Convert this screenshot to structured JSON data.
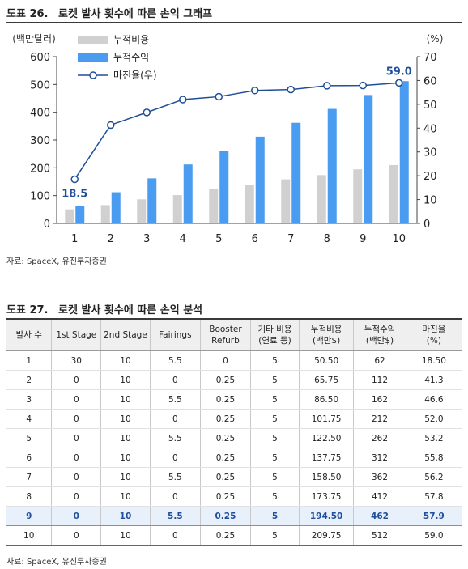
{
  "figure1": {
    "label": "도표 26.",
    "title": "로켓 발사 횟수에 따른 손익 그래프",
    "left_axis_unit": "(백만달러)",
    "right_axis_unit": "(%)",
    "source": "자료: SpaceX, 유진투자증권"
  },
  "chart_data": {
    "type": "bar",
    "categories": [
      "1",
      "2",
      "3",
      "4",
      "5",
      "6",
      "7",
      "8",
      "9",
      "10"
    ],
    "series": [
      {
        "name": "누적비용",
        "kind": "bar",
        "axis": "left",
        "color": "#d0d0d0",
        "values": [
          50.5,
          65.75,
          86.5,
          101.75,
          122.5,
          137.75,
          158.5,
          173.75,
          194.5,
          209.75
        ]
      },
      {
        "name": "누적수익",
        "kind": "bar",
        "axis": "left",
        "color": "#4a9cf0",
        "values": [
          62,
          112,
          162,
          212,
          262,
          312,
          362,
          412,
          462,
          512
        ]
      },
      {
        "name": "마진율(우)",
        "kind": "line",
        "axis": "right",
        "color": "#1f4e9a",
        "values": [
          18.5,
          41.3,
          46.6,
          52.0,
          53.2,
          55.8,
          56.2,
          57.8,
          57.9,
          59.0
        ]
      }
    ],
    "ylim": [
      0,
      600
    ],
    "y2lim": [
      0,
      70
    ],
    "yticks": [
      "0",
      "100",
      "200",
      "300",
      "400",
      "500",
      "600"
    ],
    "y2ticks": [
      "0",
      "10",
      "20",
      "30",
      "40",
      "50",
      "60",
      "70"
    ],
    "annotations": [
      {
        "index": 0,
        "text": "18.5"
      },
      {
        "index": 9,
        "text": "59.0"
      }
    ],
    "legend": "top-left",
    "grid": false
  },
  "figure2": {
    "label": "도표 27.",
    "title": "로켓 발사 횟수에 따른 손익 분석",
    "source": "자료: SpaceX, 유진투자증권",
    "headers": [
      [
        "발사 수"
      ],
      [
        "1st Stage"
      ],
      [
        "2nd Stage"
      ],
      [
        "Fairings"
      ],
      [
        "Booster",
        "Refurb"
      ],
      [
        "기타 비용",
        "(연료 등)"
      ],
      [
        "누적비용",
        "(백만$)"
      ],
      [
        "누적수익",
        "(백만$)"
      ],
      [
        "마진율",
        "(%)"
      ]
    ],
    "rows": [
      [
        "1",
        "30",
        "10",
        "5.5",
        "0",
        "5",
        "50.50",
        "62",
        "18.50"
      ],
      [
        "2",
        "0",
        "10",
        "0",
        "0.25",
        "5",
        "65.75",
        "112",
        "41.3"
      ],
      [
        "3",
        "0",
        "10",
        "5.5",
        "0.25",
        "5",
        "86.50",
        "162",
        "46.6"
      ],
      [
        "4",
        "0",
        "10",
        "0",
        "0.25",
        "5",
        "101.75",
        "212",
        "52.0"
      ],
      [
        "5",
        "0",
        "10",
        "5.5",
        "0.25",
        "5",
        "122.50",
        "262",
        "53.2"
      ],
      [
        "6",
        "0",
        "10",
        "0",
        "0.25",
        "5",
        "137.75",
        "312",
        "55.8"
      ],
      [
        "7",
        "0",
        "10",
        "5.5",
        "0.25",
        "5",
        "158.50",
        "362",
        "56.2"
      ],
      [
        "8",
        "0",
        "10",
        "0",
        "0.25",
        "5",
        "173.75",
        "412",
        "57.8"
      ],
      [
        "9",
        "0",
        "10",
        "5.5",
        "0.25",
        "5",
        "194.50",
        "462",
        "57.9"
      ],
      [
        "10",
        "0",
        "10",
        "0",
        "0.25",
        "5",
        "209.75",
        "512",
        "59.0"
      ]
    ],
    "highlight_row": 8
  }
}
